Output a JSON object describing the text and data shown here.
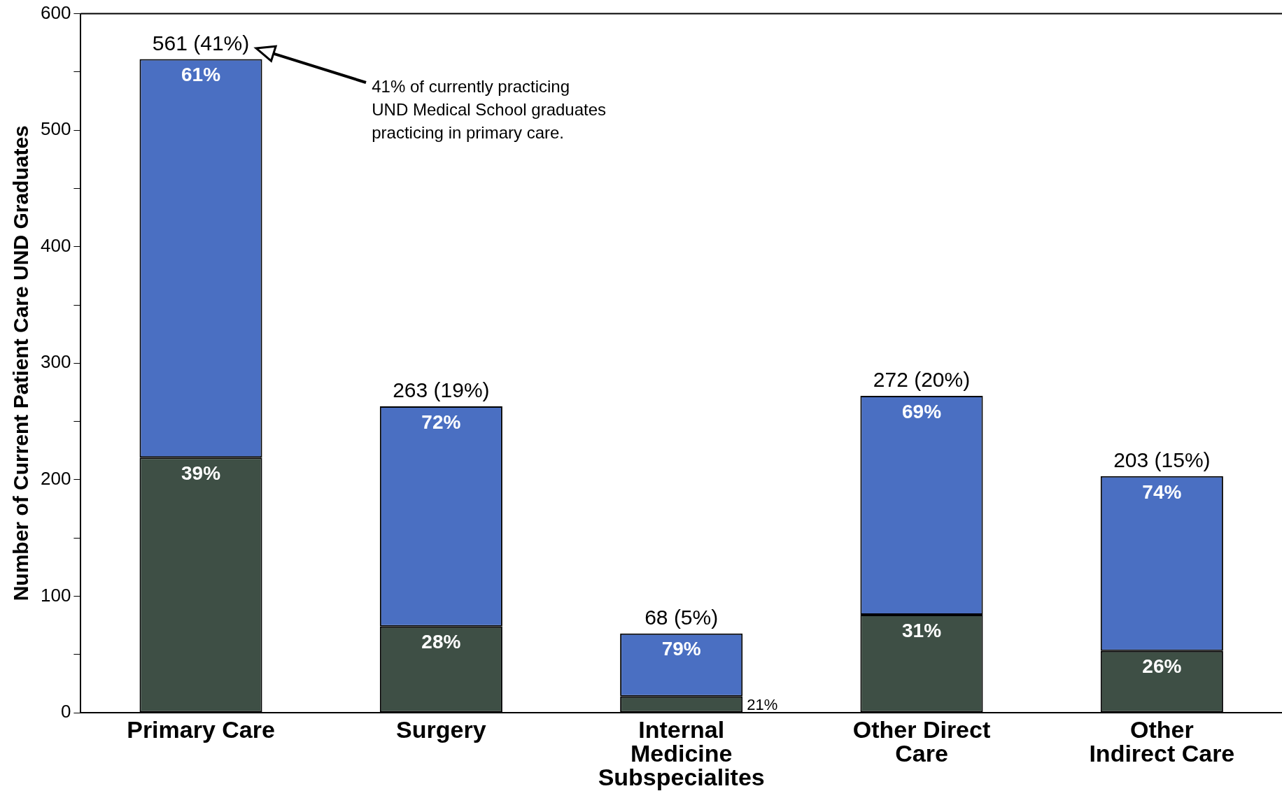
{
  "chart_data": {
    "type": "bar",
    "stacked": true,
    "categories": [
      "Primary Care",
      "Surgery",
      "Internal Medicine Subspecialites",
      "Other Direct Care",
      "Other Indirect Care"
    ],
    "series": [
      {
        "color": "#3e4f45",
        "values": [
          219,
          74,
          14,
          84,
          53
        ]
      },
      {
        "color": "#4a6fc2",
        "values": [
          342,
          189,
          54,
          188,
          150
        ]
      }
    ],
    "totals": [
      "561 (41%)",
      "263 (19%)",
      "68 (5%)",
      "272 (20%)",
      "203 (15%)"
    ],
    "ylabel": "Number of Current Patient Care UND Graduates",
    "ylim": [
      0,
      600
    ],
    "yticks": [
      0,
      {
        "value": 50,
        "label": null
      },
      100,
      {
        "value": 150,
        "label": null
      },
      200,
      {
        "value": 250,
        "label": null
      },
      300,
      {
        "value": 350,
        "label": null
      },
      400,
      {
        "value": 450,
        "label": null
      },
      500,
      {
        "value": 550,
        "label": null
      },
      600
    ],
    "annotations": [
      "41% of currently practicing\nUND Medical School graduates\npracticing in primary care.",
      {
        "text": "61%",
        "x": "Primary Care",
        "y": 561
      },
      {
        "text": "39%",
        "x": "Primary Care",
        "y": 219
      },
      {
        "text": "72%",
        "x": "Surgery",
        "y": 263
      },
      {
        "text": "28%",
        "x": "Surgery",
        "y": 74
      },
      {
        "text": "79%",
        "x": "Internal Medicine Subspecialites",
        "y": 68
      },
      "21%",
      {
        "text": "69%",
        "x": "Other Direct Care",
        "y": 272
      },
      {
        "text": "31%",
        "x": "Other Direct Care",
        "y": 84
      },
      {
        "text": "74%",
        "x": "Other Indirect Care",
        "y": 203
      },
      {
        "text": "26%",
        "x": "Other Indirect Care",
        "y": 53
      }
    ],
    "legend": false,
    "grid": false
  }
}
